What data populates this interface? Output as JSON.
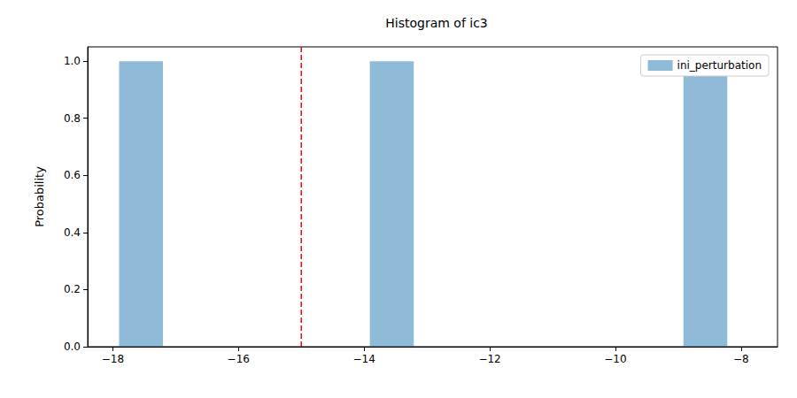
{
  "chart_data": {
    "type": "histogram",
    "title": "Histogram of ic3",
    "y_label": "Probability",
    "bins": [
      -17.9,
      -16.902,
      -15.904,
      -14.906,
      -13.908,
      -12.91,
      -11.912,
      -10.914,
      -9.916,
      -8.918,
      -7.92
    ],
    "series": [
      {
        "name": "ini_perturbation",
        "color": "#1f77b4",
        "values": [
          1,
          0,
          0,
          0,
          1,
          0,
          0,
          0,
          0,
          1
        ]
      }
    ],
    "reference_lines": [
      {
        "x": -15,
        "color": "#ff0000",
        "line_style": "dashed"
      }
    ],
    "xlim": [
      -18.4,
      -7.42
    ],
    "xticks": [
      {
        "value": -18,
        "label": "−18"
      },
      {
        "value": -16,
        "label": "−16"
      },
      {
        "value": -14,
        "label": "−14"
      },
      {
        "value": -12,
        "label": "−12"
      },
      {
        "value": -10,
        "label": "−10"
      },
      {
        "value": -8,
        "label": "−8"
      }
    ],
    "ylim": [
      0,
      1.05
    ],
    "yticks": [
      {
        "value": 0,
        "label": "0.0"
      },
      {
        "value": 0.2,
        "label": "0.2"
      },
      {
        "value": 0.4,
        "label": "0.4"
      },
      {
        "value": 0.6,
        "label": "0.6"
      },
      {
        "value": 0.8,
        "label": "0.8"
      },
      {
        "value": 1,
        "label": "1.0"
      }
    ],
    "legend": "upper right",
    "grid": false
  }
}
